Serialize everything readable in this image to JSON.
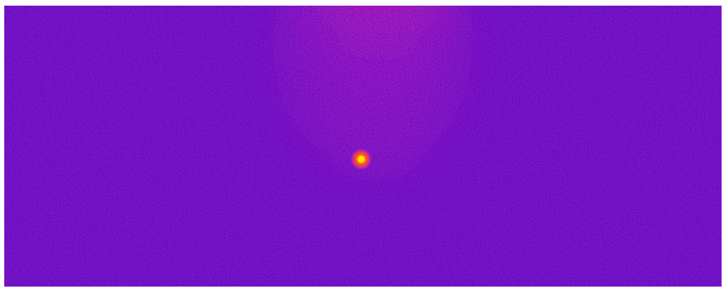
{
  "image": {
    "kind": "false-color thermal / intensity image",
    "colors": {
      "background": "#7a12d6",
      "background_dark": "#4f0aa3",
      "background_light": "#9a2cf0",
      "plume_core": "#ff1f6f",
      "plume_edge": "#c21fbf",
      "source_core": "#ffe000",
      "source_mid": "#ff5a1a",
      "source_edge": "#d52b8f"
    }
  }
}
